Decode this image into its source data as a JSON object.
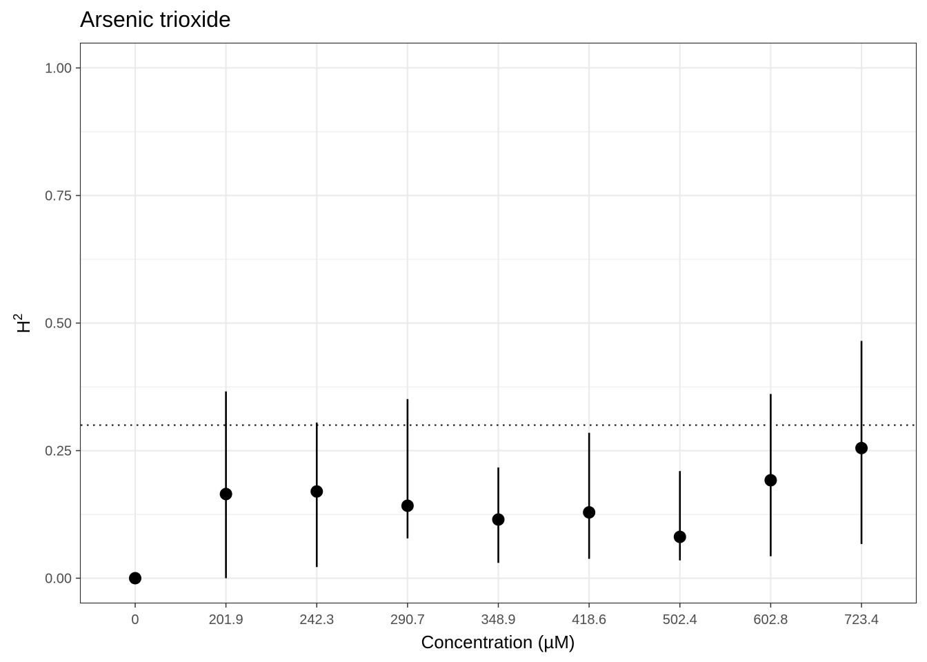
{
  "chart_data": {
    "type": "scatter",
    "title": "Arsenic trioxide",
    "xlabel": "Concentration (µM)",
    "ylabel": "H",
    "ylabel_superscript": "2",
    "categories": [
      "0",
      "201.9",
      "242.3",
      "290.7",
      "348.9",
      "418.6",
      "502.4",
      "602.8",
      "723.4"
    ],
    "series": [
      {
        "values": [
          0.0,
          0.165,
          0.17,
          0.142,
          0.115,
          0.129,
          0.081,
          0.192,
          0.255
        ],
        "lower": [
          0.0,
          0.0,
          0.022,
          0.078,
          0.03,
          0.038,
          0.035,
          0.043,
          0.067
        ],
        "upper": [
          0.0,
          0.366,
          0.305,
          0.351,
          0.217,
          0.285,
          0.21,
          0.361,
          0.465
        ]
      }
    ],
    "reference_line": {
      "y": 0.3,
      "style": "dotted"
    },
    "ylim": [
      -0.048,
      1.048
    ],
    "yticks": [
      0.0,
      0.25,
      0.5,
      0.75,
      1.0
    ],
    "ytick_labels": [
      "0.00",
      "0.25",
      "0.50",
      "0.75",
      "1.00"
    ],
    "grid": true,
    "colors": {
      "points": "#000000",
      "grid": "#ebebeb",
      "panel_border": "#333333"
    }
  }
}
